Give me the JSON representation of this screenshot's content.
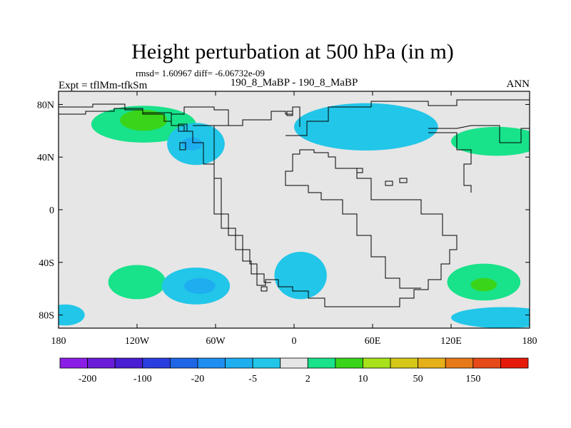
{
  "chart_data": {
    "type": "heatmap",
    "title": "Height perturbation at 500 hPa (in m)",
    "subtitle_stats": "rmsd= 1.60967 diff= -6.06732e-09",
    "left_label": "Expt = tflMm-tfkSm",
    "center_label": "190_8_MaBP - 190_8_MaBP",
    "right_label": "ANN",
    "xlim": [
      -180,
      180
    ],
    "ylim": [
      -90,
      90
    ],
    "x_ticks": [
      {
        "value": -180,
        "label": "180"
      },
      {
        "value": -120,
        "label": "120W"
      },
      {
        "value": -60,
        "label": "60W"
      },
      {
        "value": 0,
        "label": "0"
      },
      {
        "value": 60,
        "label": "60E"
      },
      {
        "value": 120,
        "label": "120E"
      },
      {
        "value": 180,
        "label": "180"
      }
    ],
    "y_ticks": [
      {
        "value": 80,
        "label": "80N"
      },
      {
        "value": 40,
        "label": "40N"
      },
      {
        "value": 0,
        "label": "0"
      },
      {
        "value": -40,
        "label": "40S"
      },
      {
        "value": -80,
        "label": "80S"
      }
    ],
    "colorbar": {
      "colors": [
        "#8a1ee6",
        "#6a1cd8",
        "#4a1ed2",
        "#2a3ee0",
        "#1f66e6",
        "#1e8ef0",
        "#1eaef0",
        "#22c6e8",
        "#e6e6e6",
        "#18e28a",
        "#3ad41a",
        "#a8e21a",
        "#d6c818",
        "#e6b018",
        "#e67a18",
        "#e64a18",
        "#e61a0a"
      ],
      "levels": [
        {
          "index": 1,
          "label": "-200"
        },
        {
          "index": 3,
          "label": "-100"
        },
        {
          "index": 5,
          "label": "-20"
        },
        {
          "index": 7,
          "label": "-5"
        },
        {
          "index": 9,
          "label": "2"
        },
        {
          "index": 11,
          "label": "10"
        },
        {
          "index": 13,
          "label": "50"
        },
        {
          "index": 15,
          "label": "150"
        }
      ]
    },
    "anomalies": [
      {
        "lon": -115,
        "lat": 65,
        "rx": 40,
        "ry": 14,
        "level": "+2",
        "color": "#18e28a"
      },
      {
        "lon": -115,
        "lat": 68,
        "rx": 18,
        "ry": 8,
        "level": "+10",
        "color": "#3ad41a"
      },
      {
        "lon": -75,
        "lat": 50,
        "rx": 22,
        "ry": 16,
        "level": "-2",
        "color": "#22c6e8"
      },
      {
        "lon": -78,
        "lat": 50,
        "rx": 8,
        "ry": 5,
        "level": "-5",
        "color": "#1eaef0"
      },
      {
        "lon": 55,
        "lat": 63,
        "rx": 55,
        "ry": 18,
        "level": "-2",
        "color": "#22c6e8"
      },
      {
        "lon": 155,
        "lat": 52,
        "rx": 35,
        "ry": 11,
        "level": "+2",
        "color": "#18e28a"
      },
      {
        "lon": -120,
        "lat": -55,
        "rx": 22,
        "ry": 13,
        "level": "+2",
        "color": "#18e28a"
      },
      {
        "lon": -75,
        "lat": -58,
        "rx": 26,
        "ry": 14,
        "level": "-2",
        "color": "#22c6e8"
      },
      {
        "lon": -72,
        "lat": -58,
        "rx": 12,
        "ry": 6,
        "level": "-5",
        "color": "#1eaef0"
      },
      {
        "lon": 5,
        "lat": -50,
        "rx": 20,
        "ry": 18,
        "level": "-2",
        "color": "#22c6e8"
      },
      {
        "lon": 145,
        "lat": -55,
        "rx": 28,
        "ry": 14,
        "level": "+2",
        "color": "#18e28a"
      },
      {
        "lon": 145,
        "lat": -57,
        "rx": 10,
        "ry": 5,
        "level": "+10",
        "color": "#3ad41a"
      },
      {
        "lon": 160,
        "lat": -82,
        "rx": 40,
        "ry": 8,
        "level": "-2",
        "color": "#22c6e8"
      },
      {
        "lon": -175,
        "lat": -80,
        "rx": 15,
        "ry": 8,
        "level": "-2",
        "color": "#22c6e8"
      }
    ]
  }
}
